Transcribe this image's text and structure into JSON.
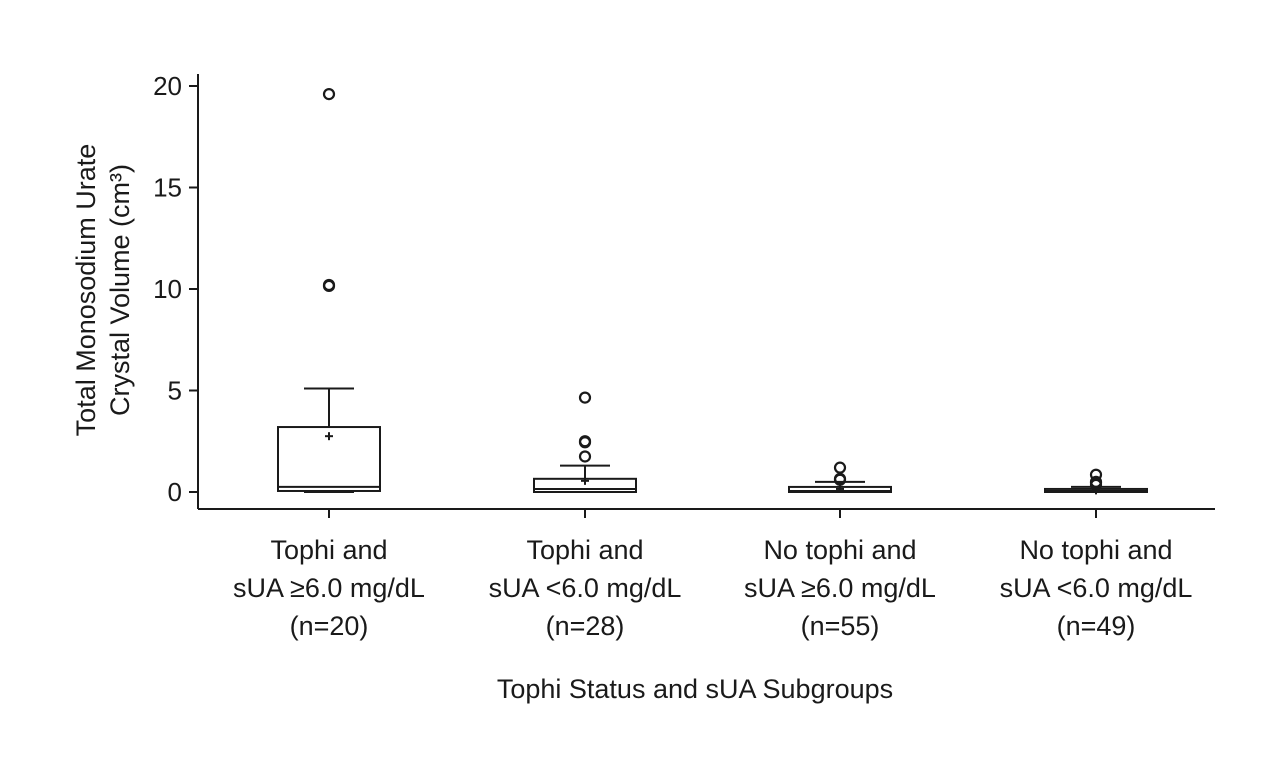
{
  "chart_data": {
    "type": "box",
    "title": "",
    "xlabel": "Tophi Status and sUA Subgroups",
    "ylabel_lines": [
      "Total Monosodium Urate",
      "Crystal Volume (cm³)"
    ],
    "ylim": [
      -0.8,
      20.6
    ],
    "yticks": [
      0,
      5,
      10,
      15,
      20
    ],
    "grid": false,
    "legend": "none",
    "groups": [
      {
        "label_lines": [
          "Tophi and",
          "sUA ≥6.0 mg/dL",
          "(n=20)"
        ],
        "min": 0.0,
        "q1": 0.05,
        "median": 0.25,
        "q3": 3.2,
        "max": 5.1,
        "mean": 2.75,
        "outliers": [
          19.6,
          10.2,
          10.15
        ]
      },
      {
        "label_lines": [
          "Tophi and",
          "sUA <6.0 mg/dL",
          "(n=28)"
        ],
        "min": 0.0,
        "q1": 0.0,
        "median": 0.15,
        "q3": 0.65,
        "max": 1.3,
        "mean": 0.55,
        "outliers": [
          4.65,
          2.5,
          2.45,
          1.75
        ]
      },
      {
        "label_lines": [
          "No tophi and",
          "sUA ≥6.0 mg/dL",
          "(n=55)"
        ],
        "min": 0.0,
        "q1": 0.0,
        "median": 0.05,
        "q3": 0.25,
        "max": 0.5,
        "mean": 0.15,
        "outliers": [
          1.2,
          0.65,
          0.6
        ]
      },
      {
        "label_lines": [
          "No tophi and",
          "sUA <6.0 mg/dL",
          "(n=49)"
        ],
        "min": 0.0,
        "q1": 0.0,
        "median": 0.05,
        "q3": 0.15,
        "max": 0.25,
        "mean": 0.08,
        "outliers": [
          0.85,
          0.5,
          0.45,
          0.35
        ]
      }
    ]
  }
}
